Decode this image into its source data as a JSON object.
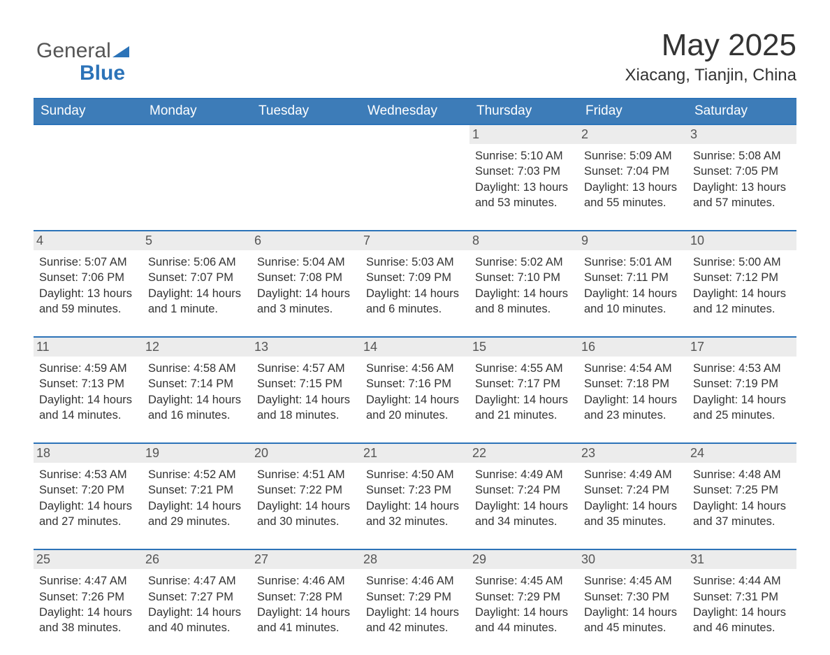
{
  "logo": {
    "word1": "General",
    "word2": "Blue"
  },
  "header": {
    "title": "May 2025",
    "subtitle": "Xiacang, Tianjin, China"
  },
  "colors": {
    "header_bg": "#3d7cb8",
    "accent": "#2c73b8",
    "daynum_bg": "#ececec",
    "text": "#333333",
    "white": "#ffffff"
  },
  "calendar": {
    "day_names": [
      "Sunday",
      "Monday",
      "Tuesday",
      "Wednesday",
      "Thursday",
      "Friday",
      "Saturday"
    ],
    "weeks": [
      [
        null,
        null,
        null,
        null,
        {
          "n": "1",
          "sunrise": "5:10 AM",
          "sunset": "7:03 PM",
          "daylight": "13 hours and 53 minutes."
        },
        {
          "n": "2",
          "sunrise": "5:09 AM",
          "sunset": "7:04 PM",
          "daylight": "13 hours and 55 minutes."
        },
        {
          "n": "3",
          "sunrise": "5:08 AM",
          "sunset": "7:05 PM",
          "daylight": "13 hours and 57 minutes."
        }
      ],
      [
        {
          "n": "4",
          "sunrise": "5:07 AM",
          "sunset": "7:06 PM",
          "daylight": "13 hours and 59 minutes."
        },
        {
          "n": "5",
          "sunrise": "5:06 AM",
          "sunset": "7:07 PM",
          "daylight": "14 hours and 1 minute."
        },
        {
          "n": "6",
          "sunrise": "5:04 AM",
          "sunset": "7:08 PM",
          "daylight": "14 hours and 3 minutes."
        },
        {
          "n": "7",
          "sunrise": "5:03 AM",
          "sunset": "7:09 PM",
          "daylight": "14 hours and 6 minutes."
        },
        {
          "n": "8",
          "sunrise": "5:02 AM",
          "sunset": "7:10 PM",
          "daylight": "14 hours and 8 minutes."
        },
        {
          "n": "9",
          "sunrise": "5:01 AM",
          "sunset": "7:11 PM",
          "daylight": "14 hours and 10 minutes."
        },
        {
          "n": "10",
          "sunrise": "5:00 AM",
          "sunset": "7:12 PM",
          "daylight": "14 hours and 12 minutes."
        }
      ],
      [
        {
          "n": "11",
          "sunrise": "4:59 AM",
          "sunset": "7:13 PM",
          "daylight": "14 hours and 14 minutes."
        },
        {
          "n": "12",
          "sunrise": "4:58 AM",
          "sunset": "7:14 PM",
          "daylight": "14 hours and 16 minutes."
        },
        {
          "n": "13",
          "sunrise": "4:57 AM",
          "sunset": "7:15 PM",
          "daylight": "14 hours and 18 minutes."
        },
        {
          "n": "14",
          "sunrise": "4:56 AM",
          "sunset": "7:16 PM",
          "daylight": "14 hours and 20 minutes."
        },
        {
          "n": "15",
          "sunrise": "4:55 AM",
          "sunset": "7:17 PM",
          "daylight": "14 hours and 21 minutes."
        },
        {
          "n": "16",
          "sunrise": "4:54 AM",
          "sunset": "7:18 PM",
          "daylight": "14 hours and 23 minutes."
        },
        {
          "n": "17",
          "sunrise": "4:53 AM",
          "sunset": "7:19 PM",
          "daylight": "14 hours and 25 minutes."
        }
      ],
      [
        {
          "n": "18",
          "sunrise": "4:53 AM",
          "sunset": "7:20 PM",
          "daylight": "14 hours and 27 minutes."
        },
        {
          "n": "19",
          "sunrise": "4:52 AM",
          "sunset": "7:21 PM",
          "daylight": "14 hours and 29 minutes."
        },
        {
          "n": "20",
          "sunrise": "4:51 AM",
          "sunset": "7:22 PM",
          "daylight": "14 hours and 30 minutes."
        },
        {
          "n": "21",
          "sunrise": "4:50 AM",
          "sunset": "7:23 PM",
          "daylight": "14 hours and 32 minutes."
        },
        {
          "n": "22",
          "sunrise": "4:49 AM",
          "sunset": "7:24 PM",
          "daylight": "14 hours and 34 minutes."
        },
        {
          "n": "23",
          "sunrise": "4:49 AM",
          "sunset": "7:24 PM",
          "daylight": "14 hours and 35 minutes."
        },
        {
          "n": "24",
          "sunrise": "4:48 AM",
          "sunset": "7:25 PM",
          "daylight": "14 hours and 37 minutes."
        }
      ],
      [
        {
          "n": "25",
          "sunrise": "4:47 AM",
          "sunset": "7:26 PM",
          "daylight": "14 hours and 38 minutes."
        },
        {
          "n": "26",
          "sunrise": "4:47 AM",
          "sunset": "7:27 PM",
          "daylight": "14 hours and 40 minutes."
        },
        {
          "n": "27",
          "sunrise": "4:46 AM",
          "sunset": "7:28 PM",
          "daylight": "14 hours and 41 minutes."
        },
        {
          "n": "28",
          "sunrise": "4:46 AM",
          "sunset": "7:29 PM",
          "daylight": "14 hours and 42 minutes."
        },
        {
          "n": "29",
          "sunrise": "4:45 AM",
          "sunset": "7:29 PM",
          "daylight": "14 hours and 44 minutes."
        },
        {
          "n": "30",
          "sunrise": "4:45 AM",
          "sunset": "7:30 PM",
          "daylight": "14 hours and 45 minutes."
        },
        {
          "n": "31",
          "sunrise": "4:44 AM",
          "sunset": "7:31 PM",
          "daylight": "14 hours and 46 minutes."
        }
      ]
    ],
    "labels": {
      "sunrise_prefix": "Sunrise: ",
      "sunset_prefix": "Sunset: ",
      "daylight_prefix": "Daylight: "
    }
  }
}
